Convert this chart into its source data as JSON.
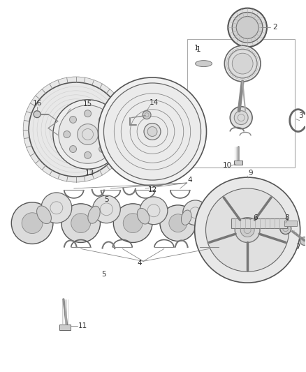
{
  "bg_color": "#ffffff",
  "fig_width": 4.38,
  "fig_height": 5.33,
  "dpi": 100,
  "line_color": "#555555",
  "text_color": "#333333",
  "font_size": 7.5
}
